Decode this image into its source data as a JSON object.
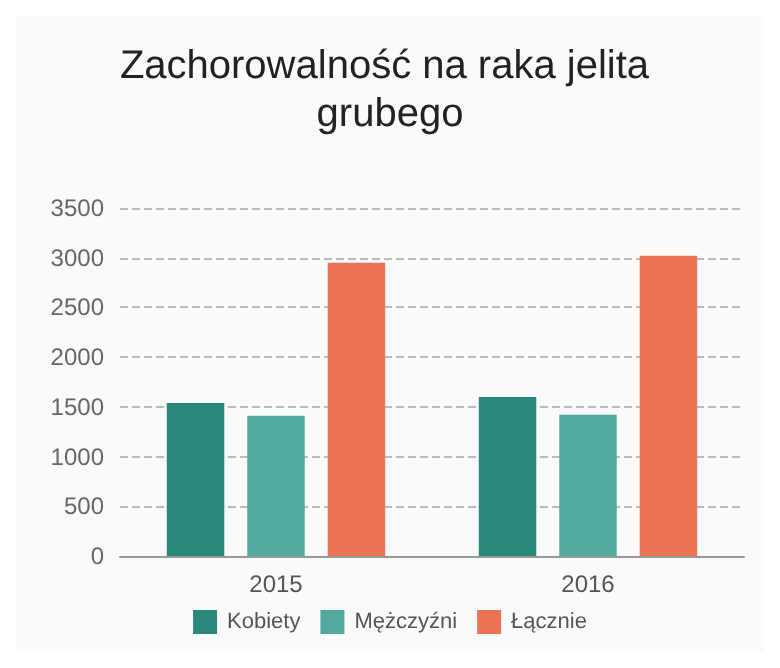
{
  "chart_data": {
    "type": "bar",
    "title": "Zachorowalność na raka jelita grubego",
    "categories": [
      "2015",
      "2016"
    ],
    "series": [
      {
        "name": "Kobiety",
        "color": "#2a877c",
        "values": [
          1540,
          1600
        ]
      },
      {
        "name": "Mężczyźni",
        "color": "#52a99f",
        "values": [
          1410,
          1420
        ]
      },
      {
        "name": "Łącznie",
        "color": "#ec7355",
        "values": [
          2950,
          3020
        ]
      }
    ],
    "ylim": [
      0,
      3500
    ],
    "yticks": [
      0,
      500,
      1000,
      1500,
      2000,
      2500,
      3000,
      3500
    ],
    "grid": "y",
    "legend": "bottom"
  }
}
